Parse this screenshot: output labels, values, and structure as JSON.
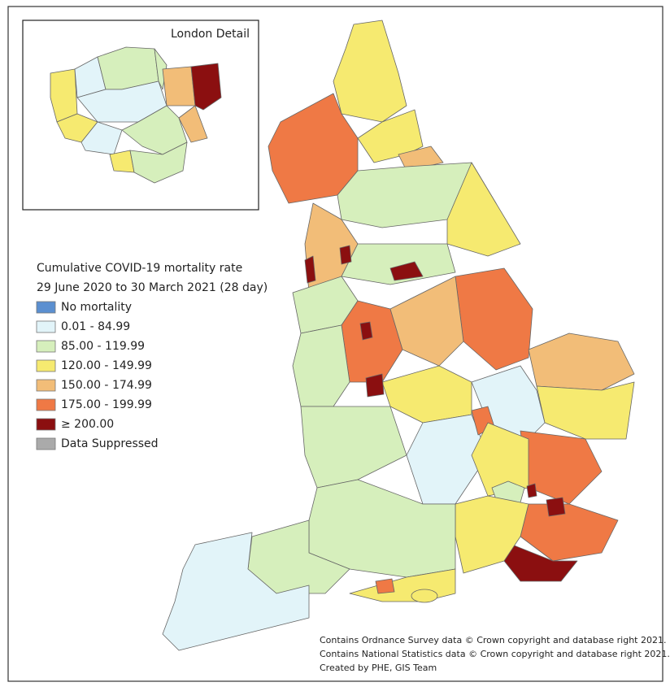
{
  "inset": {
    "title": "London Detail"
  },
  "legend": {
    "title": [
      "Cumulative COVID-19 mortality rate",
      "29 June 2020 to 30 March 2021 (28 day)"
    ],
    "items": [
      {
        "label": "No mortality",
        "color": "#5b8fd0"
      },
      {
        "label": "0.01 - 84.99",
        "color": "#e2f4f9"
      },
      {
        "label": "85.00 - 119.99",
        "color": "#d6efbc"
      },
      {
        "label": "120.00 - 149.99",
        "color": "#f6ea70"
      },
      {
        "label": "150.00 - 174.99",
        "color": "#f2bd78"
      },
      {
        "label": "175.00 - 199.99",
        "color": "#ef7945"
      },
      {
        "label": "≥ 200.00",
        "color": "#8b0f10"
      },
      {
        "label": "Data Suppressed",
        "color": "#aaaaaa"
      }
    ]
  },
  "credits": [
    "Contains Ordnance Survey data © Crown copyright and database right 2021.",
    "Contains National Statistics data © Crown copyright and database right 2021.",
    "Created by PHE, GIS Team"
  ]
}
